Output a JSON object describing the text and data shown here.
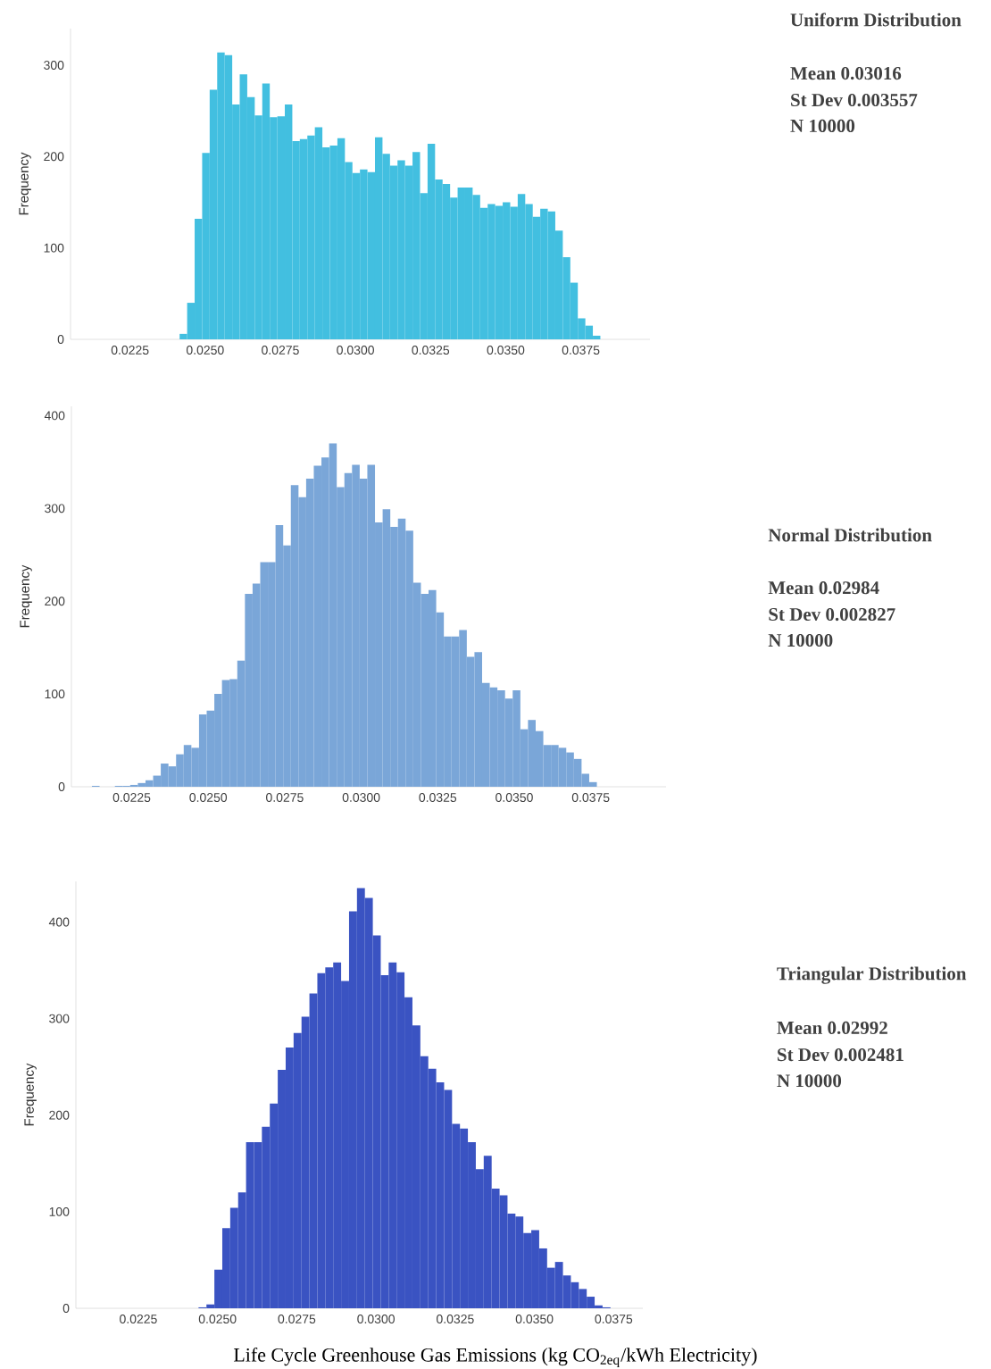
{
  "chart_data": [
    {
      "type": "histogram",
      "ylabel": "Frequency",
      "color": "#42bfe0",
      "annotations": [
        "Uniform Distribution",
        "Mean 0.03016",
        "St Dev 0.003557",
        "N 10000"
      ],
      "bins": [
        0.02415,
        0.0244,
        0.02465,
        0.0249,
        0.02515,
        0.0254,
        0.02565,
        0.0259,
        0.02615,
        0.0264,
        0.02665,
        0.0269,
        0.02715,
        0.0274,
        0.02765,
        0.0279,
        0.02815,
        0.0284,
        0.02865,
        0.0289,
        0.02915,
        0.0294,
        0.02965,
        0.0299,
        0.03015,
        0.0304,
        0.03065,
        0.0309,
        0.03115,
        0.0314,
        0.03165,
        0.0319,
        0.03215,
        0.0324,
        0.03265,
        0.0329,
        0.03315,
        0.0334,
        0.03365,
        0.0339,
        0.03415,
        0.0344,
        0.03465,
        0.0349,
        0.03515,
        0.0354,
        0.03565,
        0.0359,
        0.03615,
        0.0364,
        0.03665,
        0.0369,
        0.03715,
        0.0374,
        0.03765,
        0.0379,
        0.03815
      ],
      "values": [
        6,
        40,
        132,
        204,
        273,
        314,
        311,
        257,
        290,
        265,
        245,
        280,
        243,
        244,
        257,
        217,
        219,
        223,
        232,
        210,
        212,
        220,
        194,
        182,
        186,
        183,
        221,
        203,
        190,
        196,
        190,
        205,
        160,
        214,
        175,
        170,
        155,
        166,
        166,
        158,
        144,
        148,
        146,
        150,
        145,
        159,
        148,
        134,
        143,
        140,
        119,
        90,
        62,
        23,
        15,
        4
      ],
      "xlim": [
        0.02052,
        0.0398
      ],
      "ylim": [
        0,
        340
      ],
      "xticks": [
        {
          "value": 0.0225,
          "label": "0.0225"
        },
        {
          "value": 0.025,
          "label": "0.0250"
        },
        {
          "value": 0.0275,
          "label": "0.0275"
        },
        {
          "value": 0.03,
          "label": "0.0300"
        },
        {
          "value": 0.0325,
          "label": "0.0325"
        },
        {
          "value": 0.035,
          "label": "0.0350"
        },
        {
          "value": 0.0375,
          "label": "0.0375"
        }
      ],
      "yticks": [
        0,
        100,
        200,
        300
      ]
    },
    {
      "type": "histogram",
      "ylabel": "Frequency",
      "color": "#7aa6d8",
      "annotations": [
        "Normal Distribution",
        "Mean 0.02984",
        "St Dev 0.002827",
        "N 10000"
      ],
      "bins": [
        0.0212,
        0.02145,
        0.0217,
        0.02195,
        0.0222,
        0.02245,
        0.0227,
        0.02295,
        0.0232,
        0.02345,
        0.0237,
        0.02395,
        0.0242,
        0.02445,
        0.0247,
        0.02495,
        0.0252,
        0.02545,
        0.0257,
        0.02595,
        0.0262,
        0.02645,
        0.0267,
        0.02695,
        0.0272,
        0.02745,
        0.0277,
        0.02795,
        0.0282,
        0.02845,
        0.0287,
        0.02895,
        0.0292,
        0.02945,
        0.0297,
        0.02995,
        0.0302,
        0.03045,
        0.0307,
        0.03095,
        0.0312,
        0.03145,
        0.0317,
        0.03195,
        0.0322,
        0.03245,
        0.0327,
        0.03295,
        0.0332,
        0.03345,
        0.0337,
        0.03395,
        0.0342,
        0.03445,
        0.0347,
        0.03495,
        0.0352,
        0.03545,
        0.0357,
        0.03595,
        0.0362,
        0.03645,
        0.0367,
        0.03695,
        0.0372,
        0.03745,
        0.0377
      ],
      "values": [
        1,
        0,
        0,
        1,
        1,
        2,
        4,
        7,
        12,
        25,
        22,
        35,
        45,
        42,
        78,
        82,
        100,
        115,
        116,
        136,
        208,
        219,
        242,
        242,
        282,
        260,
        325,
        312,
        332,
        346,
        355,
        370,
        323,
        338,
        347,
        332,
        347,
        285,
        299,
        280,
        289,
        276,
        220,
        208,
        212,
        188,
        162,
        162,
        169,
        140,
        145,
        112,
        107,
        104,
        95,
        104,
        62,
        72,
        60,
        45,
        45,
        42,
        37,
        30,
        14,
        5
      ],
      "xlim": [
        0.02053,
        0.03996
      ],
      "ylim": [
        0,
        410
      ],
      "xticks": [
        {
          "value": 0.0225,
          "label": "0.0225"
        },
        {
          "value": 0.025,
          "label": "0.0250"
        },
        {
          "value": 0.0275,
          "label": "0.0275"
        },
        {
          "value": 0.03,
          "label": "0.0300"
        },
        {
          "value": 0.0325,
          "label": "0.0325"
        },
        {
          "value": 0.035,
          "label": "0.0350"
        },
        {
          "value": 0.0375,
          "label": "0.0375"
        }
      ],
      "yticks": [
        0,
        100,
        200,
        300,
        400
      ]
    },
    {
      "type": "histogram",
      "ylabel": "Frequency",
      "xlabel": "Life Cycle Greenhouse Gas Emissions (kg CO$_{2eq}$/kWh Electricity)",
      "color": "#3a53c2",
      "annotations": [
        "Triangular Distribution",
        "Mean 0.02992",
        "St Dev 0.002481",
        "N 10000"
      ],
      "bins": [
        0.0244,
        0.02465,
        0.0249,
        0.02515,
        0.0254,
        0.02565,
        0.0259,
        0.02615,
        0.0264,
        0.02665,
        0.0269,
        0.02715,
        0.0274,
        0.02765,
        0.0279,
        0.02815,
        0.0284,
        0.02865,
        0.0289,
        0.02915,
        0.0294,
        0.02965,
        0.0299,
        0.03015,
        0.0304,
        0.03065,
        0.0309,
        0.03115,
        0.0314,
        0.03165,
        0.0319,
        0.03215,
        0.0324,
        0.03265,
        0.0329,
        0.03315,
        0.0334,
        0.03365,
        0.0339,
        0.03415,
        0.0344,
        0.03465,
        0.0349,
        0.03515,
        0.0354,
        0.03565,
        0.0359,
        0.03615,
        0.0364,
        0.03665,
        0.0369,
        0.03715,
        0.0374
      ],
      "values": [
        1,
        4,
        40,
        83,
        104,
        120,
        172,
        172,
        188,
        212,
        247,
        270,
        285,
        302,
        326,
        347,
        353,
        358,
        339,
        411,
        435,
        425,
        386,
        345,
        358,
        348,
        322,
        293,
        261,
        248,
        234,
        226,
        191,
        186,
        172,
        144,
        158,
        124,
        117,
        98,
        95,
        78,
        81,
        62,
        42,
        48,
        34,
        27,
        20,
        12,
        3,
        1
      ],
      "xlim": [
        0.02053,
        0.03842
      ],
      "ylim": [
        0,
        442
      ],
      "xticks": [
        {
          "value": 0.0225,
          "label": "0.0225"
        },
        {
          "value": 0.025,
          "label": "0.0250"
        },
        {
          "value": 0.0275,
          "label": "0.0275"
        },
        {
          "value": 0.03,
          "label": "0.0300"
        },
        {
          "value": 0.0325,
          "label": "0.0325"
        },
        {
          "value": 0.035,
          "label": "0.0350"
        },
        {
          "value": 0.0375,
          "label": "0.0375"
        }
      ],
      "yticks": [
        0,
        100,
        200,
        300,
        400
      ]
    }
  ]
}
